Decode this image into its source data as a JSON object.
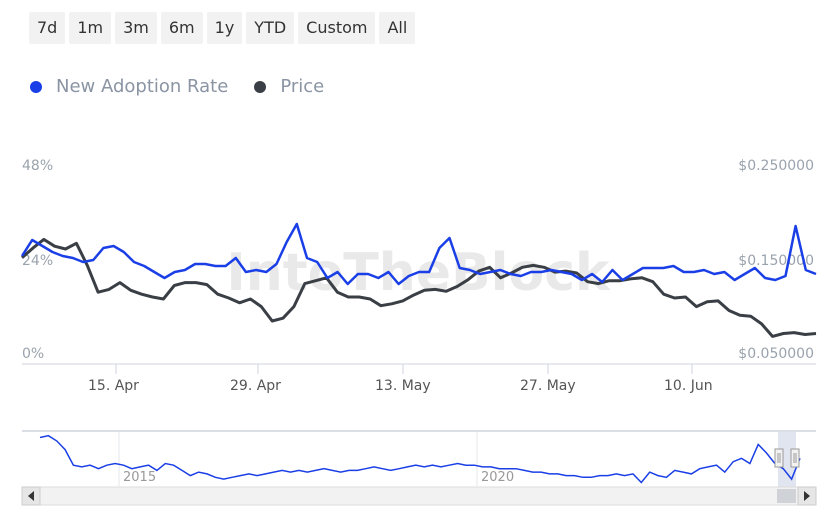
{
  "range_buttons": [
    "7d",
    "1m",
    "3m",
    "6m",
    "1y",
    "YTD",
    "Custom",
    "All"
  ],
  "legend": [
    {
      "label": "New Adoption Rate",
      "color": "#1a3fe6"
    },
    {
      "label": "Price",
      "color": "#3a3e45"
    }
  ],
  "watermark": "IntoTheBlock",
  "chart_data": {
    "type": "line",
    "x_labels": [
      "15. Apr",
      "29. Apr",
      "13. May",
      "27. May",
      "10. Jun"
    ],
    "y_left": {
      "ticks": [
        "0%",
        "24%",
        "48%"
      ],
      "range": [
        0,
        48
      ]
    },
    "y_right": {
      "ticks": [
        "$0.050000",
        "$0.150000",
        "$0.250000"
      ],
      "range": [
        0.05,
        0.25
      ]
    },
    "series": [
      {
        "name": "New Adoption Rate",
        "axis": "left",
        "color": "#1a3fe6",
        "values": [
          25.5,
          29.5,
          28.0,
          26.5,
          25.5,
          25.0,
          24.0,
          24.5,
          27.5,
          28.0,
          26.5,
          24.0,
          23.0,
          21.5,
          20.0,
          21.5,
          22.0,
          23.5,
          23.5,
          23.0,
          23.0,
          25.0,
          21.5,
          22.0,
          21.5,
          23.5,
          29.0,
          33.5,
          25.0,
          24.0,
          20.0,
          21.5,
          18.5,
          21.0,
          21.0,
          20.0,
          21.5,
          18.5,
          20.5,
          21.5,
          21.5,
          27.5,
          30.0,
          22.5,
          22.0,
          21.0,
          21.5,
          22.0,
          21.0,
          20.5,
          21.5,
          21.5,
          22.0,
          21.5,
          21.0,
          19.5,
          21.0,
          19.0,
          22.0,
          19.5,
          21.0,
          22.5,
          22.5,
          22.5,
          23.0,
          21.5,
          21.5,
          22.0,
          21.0,
          21.5,
          19.5,
          21.0,
          22.5,
          20.0,
          19.5,
          20.5,
          33.0,
          22.0,
          21.0
        ]
      },
      {
        "name": "Price",
        "axis": "right",
        "color": "#3a3e45",
        "values": [
          0.1545,
          0.1645,
          0.1735,
          0.1665,
          0.1635,
          0.1695,
          0.1465,
          0.1185,
          0.1215,
          0.1285,
          0.1205,
          0.1165,
          0.1135,
          0.1115,
          0.1255,
          0.1285,
          0.1285,
          0.1265,
          0.1165,
          0.1125,
          0.1075,
          0.1115,
          0.1035,
          0.0885,
          0.0915,
          0.1035,
          0.1275,
          0.1305,
          0.1335,
          0.1185,
          0.1135,
          0.1135,
          0.1115,
          0.1045,
          0.1065,
          0.1095,
          0.1155,
          0.1205,
          0.1215,
          0.1195,
          0.1245,
          0.1315,
          0.1405,
          0.1445,
          0.1335,
          0.1385,
          0.1445,
          0.1465,
          0.1445,
          0.1395,
          0.1405,
          0.1385,
          0.1295,
          0.1275,
          0.1305,
          0.1305,
          0.1325,
          0.1335,
          0.1295,
          0.1165,
          0.1125,
          0.1135,
          0.1035,
          0.1085,
          0.1095,
          0.0995,
          0.0945,
          0.0935,
          0.0855,
          0.0725,
          0.0755,
          0.0765,
          0.0745,
          0.0755
        ]
      }
    ],
    "grid": false,
    "legend_position": "top-left"
  },
  "navigator": {
    "year_labels": [
      "2015",
      "2020"
    ],
    "values": [
      28,
      29,
      26,
      21,
      12,
      11,
      12,
      10,
      12,
      13,
      12,
      10,
      11,
      12,
      9,
      13,
      12,
      9,
      6,
      8,
      7,
      5,
      4,
      5,
      6,
      7,
      6,
      7,
      8,
      9,
      8,
      9,
      8,
      9,
      10,
      9,
      8,
      9,
      9,
      10,
      11,
      10,
      9,
      10,
      11,
      12,
      11,
      12,
      11,
      12,
      13,
      12,
      12,
      11,
      11,
      10,
      10,
      10,
      9,
      8,
      8,
      7,
      7,
      6,
      6,
      5,
      5,
      6,
      6,
      7,
      6,
      7,
      2,
      8,
      6,
      5,
      9,
      8,
      7,
      10,
      11,
      12,
      8,
      14,
      16,
      13,
      24,
      19,
      13,
      10,
      4,
      16
    ]
  }
}
